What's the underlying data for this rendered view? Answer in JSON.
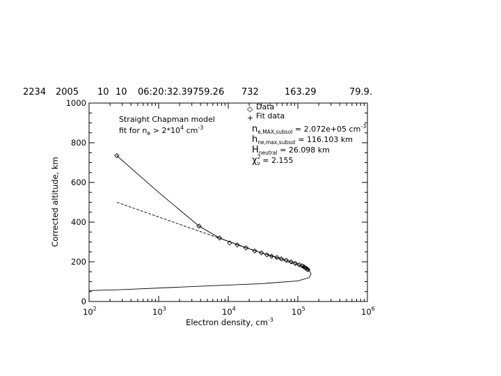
{
  "header": [
    "2234",
    "2005",
    "10",
    "10",
    "06:20:32.397",
    "59.26",
    "732",
    "163.29",
    "79.9."
  ],
  "chart_data": {
    "type": "line",
    "title": "",
    "xlabel": "Electron density, cm",
    "xlabel_sup": "-3",
    "ylabel": "Corrected altitude, km",
    "xscale": "log",
    "xlim": [
      100,
      1000000
    ],
    "ylim": [
      0,
      1000
    ],
    "xticks": [
      {
        "value": 100,
        "base": "10",
        "exp": "2"
      },
      {
        "value": 1000,
        "base": "10",
        "exp": "3"
      },
      {
        "value": 10000,
        "base": "10",
        "exp": "4"
      },
      {
        "value": 100000,
        "base": "10",
        "exp": "5"
      },
      {
        "value": 1000000,
        "base": "10",
        "exp": "6"
      }
    ],
    "yticks": [
      0,
      200,
      400,
      600,
      800,
      1000
    ],
    "grid": false,
    "annotation": {
      "line1": "Straight Chapman model",
      "line2_pre": "fit for n",
      "line2_sub": "e",
      "line2_mid": " > 2*10",
      "line2_sup1": "4",
      "line2_post": " cm",
      "line2_sup2": "-3"
    },
    "legend": {
      "position": "top-right",
      "entries": [
        {
          "symbol": "◇",
          "label": "Data"
        },
        {
          "symbol": "+",
          "label": "Fit data"
        }
      ],
      "params": [
        {
          "main": "n",
          "sub": "e,MAX,subsol",
          "text": " =     2.072e+05 cm",
          "sup": "-3"
        },
        {
          "main": "h",
          "sub": "ne,max,subsol",
          "text": " =     116.103 km",
          "sup": ""
        },
        {
          "main": "H",
          "sub": "neutral",
          "text": " =     26.098 km",
          "sup": ""
        },
        {
          "main": "χ",
          "sub": "ν",
          "supmain": "2",
          "text": " =     2.155",
          "sup": ""
        }
      ]
    },
    "series": [
      {
        "kind": "data",
        "marker": "diamond",
        "points": [
          [
            250,
            735
          ],
          [
            3800,
            380
          ],
          [
            7500,
            320
          ],
          [
            10500,
            295
          ],
          [
            13500,
            285
          ],
          [
            18000,
            270
          ],
          [
            24000,
            255
          ],
          [
            30000,
            245
          ],
          [
            36000,
            235
          ],
          [
            42000,
            228
          ],
          [
            50000,
            222
          ],
          [
            58000,
            215
          ],
          [
            68000,
            208
          ],
          [
            80000,
            200
          ],
          [
            92000,
            192
          ],
          [
            105000,
            185
          ],
          [
            115000,
            180
          ],
          [
            122000,
            175
          ],
          [
            128000,
            170
          ],
          [
            133000,
            166
          ],
          [
            137000,
            163
          ],
          [
            140000,
            160
          ]
        ]
      },
      {
        "kind": "model",
        "style": "solid",
        "points": [
          [
            250,
            735
          ],
          [
            1000,
            550
          ],
          [
            3800,
            380
          ],
          [
            7500,
            320
          ],
          [
            15000,
            280
          ],
          [
            30000,
            245
          ],
          [
            60000,
            215
          ],
          [
            100000,
            190
          ],
          [
            140000,
            165
          ],
          [
            155000,
            140
          ],
          [
            145000,
            120
          ],
          [
            100000,
            104
          ],
          [
            30000,
            90
          ],
          [
            3000,
            75
          ],
          [
            300,
            60
          ],
          [
            100,
            55
          ]
        ]
      },
      {
        "kind": "straight-fit",
        "style": "dashed",
        "points": [
          [
            250,
            500
          ],
          [
            8000,
            315
          ],
          [
            40000,
            230
          ],
          [
            150000,
            160
          ]
        ]
      }
    ]
  }
}
